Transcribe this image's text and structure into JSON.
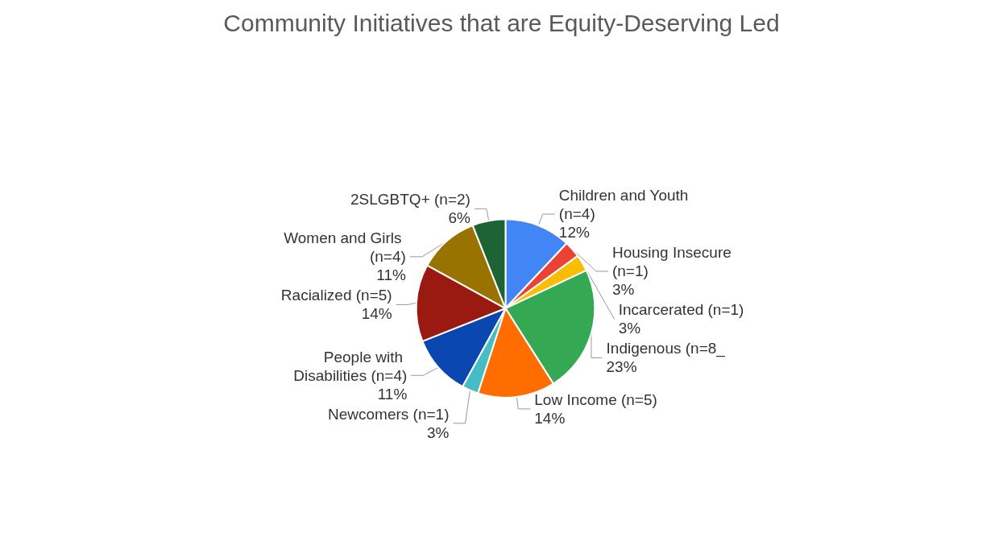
{
  "chart_data": {
    "type": "pie",
    "title": "Community Initiatives that are Equity-Deserving Led",
    "categories": [
      "Children and Youth (n=4)",
      "Housing Insecure (n=1)",
      "Incarcerated (n=1)",
      "Indigenous (n=8_",
      "Low Income (n=5)",
      "Newcomers (n=1)",
      "People with Disabilities (n=4)",
      "Racialized (n=5)",
      "Women and Girls (n=4)",
      "2SLGBTQ+ (n=2)"
    ],
    "values": [
      12,
      3,
      3,
      23,
      14,
      3,
      11,
      14,
      11,
      6
    ],
    "value_labels": [
      "12%",
      "3%",
      "3%",
      "23%",
      "14%",
      "3%",
      "11%",
      "14%",
      "11%",
      "6%"
    ],
    "colors": [
      "#4285f4",
      "#ea4335",
      "#fbbc04",
      "#34a853",
      "#ff6d01",
      "#46bdc6",
      "#0b47b0",
      "#9a1a12",
      "#997300",
      "#1e6333"
    ],
    "legend": false
  }
}
